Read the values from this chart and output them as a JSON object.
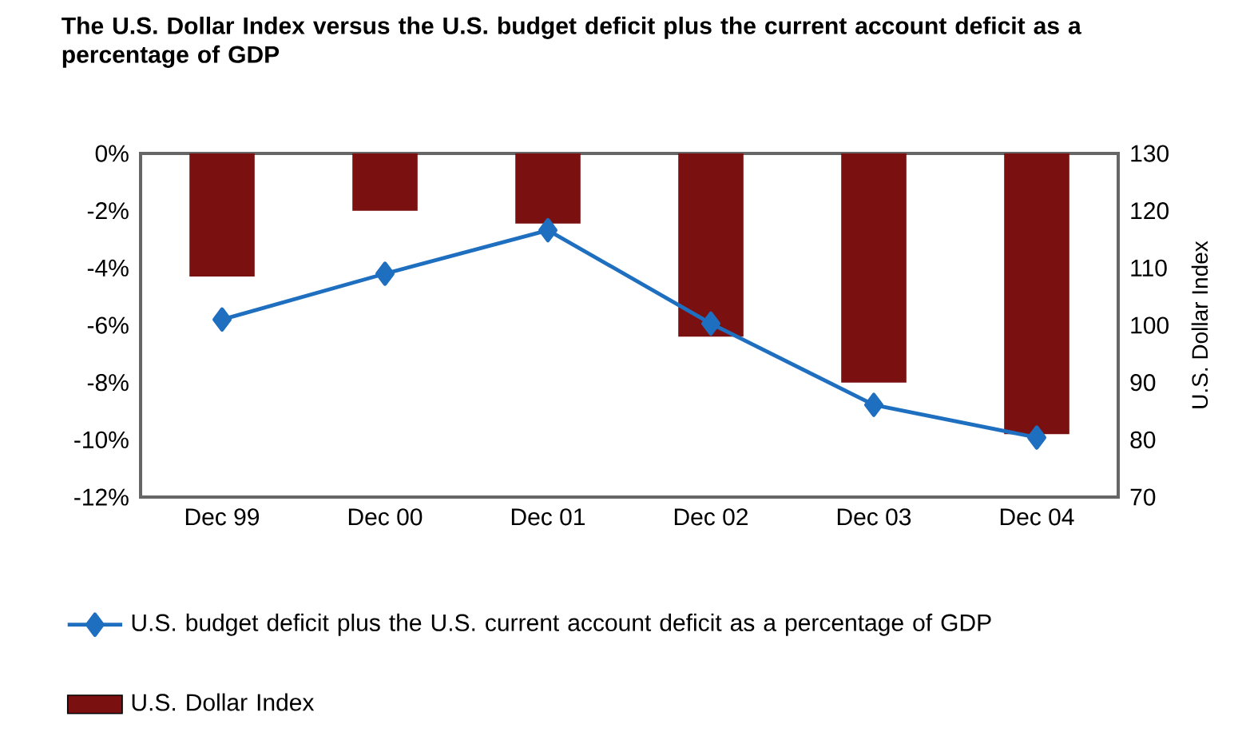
{
  "chart_data": {
    "type": "bar",
    "title": "The U.S. Dollar Index versus the U.S. budget deficit plus the current account deficit as a percentage of GDP",
    "categories": [
      "Dec 99",
      "Dec 00",
      "Dec 01",
      "Dec 02",
      "Dec 03",
      "Dec 04"
    ],
    "series": [
      {
        "name": "U.S. budget deficit plus the U.S. current account deficit as a percentage of GDP",
        "type": "line",
        "axis": "y2",
        "color": "#1f6fc0",
        "marker": "diamond",
        "values": [
          101.0,
          109.0,
          116.6,
          100.3,
          86.1,
          80.4
        ]
      },
      {
        "name": "U.S. Dollar Index",
        "color": "#7b1010",
        "values": [
          -4.3,
          -2.0,
          -2.45,
          -6.4,
          -8.0,
          -9.8
        ]
      }
    ],
    "ylim": [
      -12,
      0
    ],
    "yticks": [
      {
        "value": -12,
        "label": "-12%"
      },
      {
        "value": -10,
        "label": "-10%"
      },
      {
        "value": -8,
        "label": "-8%"
      },
      {
        "value": -6,
        "label": "-6%"
      },
      {
        "value": -4,
        "label": "-4%"
      },
      {
        "value": -2,
        "label": "-2%"
      },
      {
        "value": 0,
        "label": "0%"
      }
    ],
    "y2lim": [
      70,
      130
    ],
    "y2ticks": [
      70,
      80,
      90,
      100,
      110,
      120,
      130
    ],
    "y2label": "U.S. Dollar Index",
    "legend": "bottom"
  }
}
